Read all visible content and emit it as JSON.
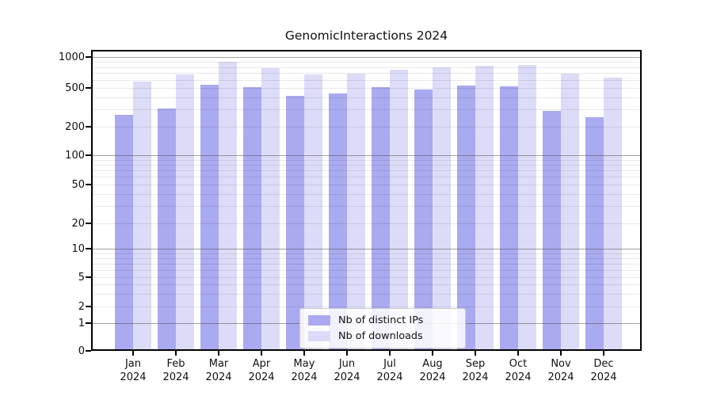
{
  "chart_data": {
    "type": "bar",
    "title": "GenomicInteractions 2024",
    "categories": [
      "Jan 2024",
      "Feb 2024",
      "Mar 2024",
      "Apr 2024",
      "May 2024",
      "Jun 2024",
      "Jul 2024",
      "Aug 2024",
      "Sep 2024",
      "Oct 2024",
      "Nov 2024",
      "Dec 2024"
    ],
    "series": [
      {
        "name": "Nb of distinct IPs",
        "color": "#aaaaf0",
        "values": [
          265,
          309,
          534,
          509,
          417,
          436,
          509,
          479,
          532,
          518,
          291,
          252
        ]
      },
      {
        "name": "Nb of downloads",
        "color": "#dcdcf8",
        "values": [
          580,
          673,
          894,
          784,
          676,
          685,
          748,
          794,
          827,
          842,
          685,
          633
        ]
      }
    ],
    "xlabel": "",
    "ylabel": "",
    "y_scale": "symlog",
    "y_ticks": [
      0,
      1,
      2,
      5,
      10,
      20,
      50,
      100,
      200,
      500,
      1000
    ],
    "y_minor_gridlines": [
      2,
      3,
      4,
      5,
      6,
      7,
      8,
      9,
      20,
      30,
      40,
      50,
      60,
      70,
      80,
      90,
      200,
      300,
      400,
      500,
      600,
      700,
      800,
      900
    ],
    "y_major_gridlines": [
      1,
      10,
      100,
      1000
    ],
    "ylim": [
      0,
      1100
    ],
    "grid": true,
    "legend_position": "lower center",
    "colors": {
      "axis": "#000000",
      "text": "#111111",
      "background": "#ffffff"
    }
  }
}
